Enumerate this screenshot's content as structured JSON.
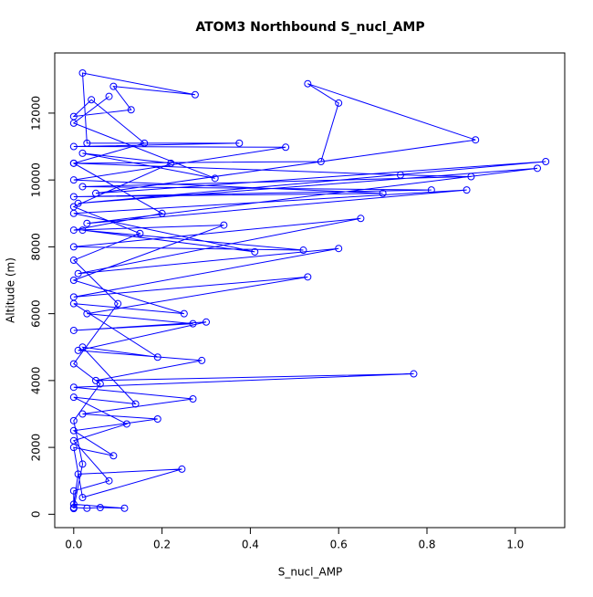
{
  "chart_data": {
    "type": "line",
    "title": "ATOM3 Northbound S_nucl_AMP",
    "xlabel": "S_nucl_AMP",
    "ylabel": "Altitude (m)",
    "color": "#0000ff",
    "marker": "circle",
    "x": [
      0.0,
      0.03,
      0.06,
      0.115,
      0.0,
      0.01,
      0.245,
      0.02,
      0.0,
      0.09,
      0.0,
      0.19,
      0.02,
      0.27,
      0.0,
      0.77,
      0.05,
      0.29,
      0.01,
      0.3,
      0.0,
      0.27,
      0.03,
      0.53,
      0.0,
      0.6,
      0.01,
      0.65,
      0.0,
      0.52,
      0.02,
      0.41,
      0.0,
      0.89,
      0.03,
      1.05,
      0.01,
      1.069,
      0.05,
      0.91,
      0.53,
      0.6,
      0.56,
      0.0,
      0.74,
      0.9,
      0.02,
      0.81,
      0.0,
      0.7,
      0.0,
      0.48,
      0.0,
      0.375,
      0.03,
      0.02,
      0.275,
      0.09,
      0.13,
      0.0,
      0.04,
      0.16,
      0.0,
      0.2,
      0.0,
      0.34,
      0.0,
      0.25,
      0.0,
      0.19,
      0.02,
      0.14,
      0.0,
      0.12,
      0.0,
      0.08,
      0.0,
      0.0,
      0.02,
      0.0,
      0.06,
      0.0,
      0.1,
      0.0,
      0.15,
      0.0,
      0.22,
      0.02,
      0.32,
      0.0,
      0.08
    ],
    "values": [
      200,
      180,
      200,
      180,
      300,
      1200,
      1350,
      500,
      2000,
      1750,
      2500,
      2850,
      3000,
      3450,
      3800,
      4200,
      4000,
      4600,
      4900,
      5750,
      5500,
      5700,
      6000,
      7100,
      6500,
      7950,
      7200,
      8850,
      8000,
      7900,
      8500,
      7850,
      9000,
      9700,
      8700,
      10350,
      9300,
      10550,
      9600,
      11200,
      12880,
      12300,
      10550,
      10500,
      10150,
      10100,
      9800,
      9700,
      9500,
      9600,
      10000,
      10980,
      11000,
      11100,
      11100,
      13200,
      12550,
      12800,
      12100,
      11900,
      12400,
      11100,
      10500,
      9000,
      8500,
      8650,
      7000,
      6000,
      6300,
      4700,
      5000,
      3300,
      3500,
      2700,
      2200,
      1000,
      700,
      170,
      1500,
      2800,
      3900,
      4500,
      6300,
      7600,
      8400,
      9200,
      10500,
      10800,
      10050,
      11700,
      12500
    ],
    "xlim": [
      -0.043,
      1.112
    ],
    "ylim": [
      -400,
      13800
    ],
    "xticks": [
      {
        "value": 0,
        "label": "0.0"
      },
      {
        "value": 0.2,
        "label": "0.2"
      },
      {
        "value": 0.4,
        "label": "0.4"
      },
      {
        "value": 0.6,
        "label": "0.6"
      },
      {
        "value": 0.8,
        "label": "0.8"
      },
      {
        "value": 1,
        "label": "1.0"
      }
    ],
    "yticks": [
      0,
      2000,
      4000,
      6000,
      8000,
      10000,
      12000
    ]
  }
}
